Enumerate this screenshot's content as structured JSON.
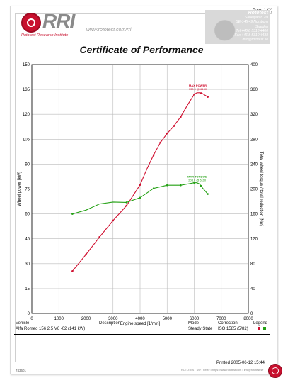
{
  "header": {
    "page_number": "Page 1 (2)",
    "brand": "RRI",
    "brand_subtitle": "Rototest Research Institute",
    "url": "www.rototest.com/rri",
    "company_name": "Rototest",
    "company_lines": [
      "Sabelgatan 2D",
      "SE-145 49 Norsborg",
      "Sweden",
      "Tel +46 8 5310 4400",
      "Fax +46 8 5310 4488",
      "info@rototest.se"
    ]
  },
  "title": "Certificate of Performance",
  "chart_data": {
    "type": "line",
    "title": "Certificate of Performance",
    "xlabel": "Engine speed [1/min]",
    "ylabel": "Wheel power [kW]",
    "y2label": "Total wheel torque / total reduction [Nm]",
    "xlim": [
      0,
      8000
    ],
    "ylim": [
      0,
      150
    ],
    "y2lim": [
      0,
      400
    ],
    "x_ticks": [
      0,
      1000,
      2000,
      3000,
      4000,
      5000,
      6000,
      7000,
      8000
    ],
    "y_ticks": [
      0,
      15,
      30,
      45,
      60,
      75,
      90,
      105,
      120,
      135,
      150
    ],
    "y2_ticks": [
      0,
      40,
      80,
      120,
      160,
      200,
      240,
      280,
      320,
      360,
      400
    ],
    "grid": true,
    "series": [
      {
        "name": "Power",
        "color": "#d01030",
        "axis": "left",
        "x": [
          1500,
          2000,
          2500,
          3000,
          3500,
          4000,
          4250,
          4500,
          4750,
          5000,
          5250,
          5500,
          5750,
          6000,
          6100,
          6200,
          6300,
          6500
        ],
        "y": [
          25.5,
          35.5,
          46,
          56,
          65,
          77.5,
          87,
          95.5,
          103,
          108.5,
          113,
          118.5,
          125.5,
          132,
          133,
          133,
          132.5,
          130.5
        ],
        "marker_x": [
          1500,
          2000,
          2500,
          3000,
          3500,
          4000,
          4500,
          4750,
          5000,
          5250,
          5500,
          6000,
          6250,
          6500
        ]
      },
      {
        "name": "Torque",
        "color": "#22a012",
        "axis": "right",
        "x": [
          1500,
          2000,
          2500,
          3000,
          3500,
          4000,
          4500,
          5000,
          5500,
          5750,
          6000,
          6100,
          6200,
          6300,
          6500
        ],
        "y": [
          160,
          166,
          176,
          179,
          178.5,
          186,
          201,
          206,
          206,
          208,
          210,
          210,
          208,
          202,
          192
        ],
        "marker_x": [
          1500,
          3500,
          4000,
          4500,
          5000,
          5500,
          6000,
          6250,
          6500
        ]
      }
    ],
    "annotations": [
      {
        "series": "Power",
        "label": "MAX POWER",
        "value": "133.0 @ 6130",
        "x": 6130,
        "y": 133
      },
      {
        "series": "Torque",
        "label": "MAX TORQUE",
        "value": "208.0 @ 6110",
        "x": 6110,
        "y": 208
      }
    ]
  },
  "table": {
    "headers": {
      "vehicle": "Vehicle",
      "description": "Description",
      "mode": "Mode",
      "correction": "Correction",
      "legend": "Legend"
    },
    "row": {
      "vehicle": "Alfa Romeo 156 2.5 V6 -02 (141 kW)",
      "description": "",
      "mode": "Steady State",
      "correction": "ISO 1585 (5/82)"
    },
    "legend_colors": [
      "#d01030",
      "#22a012"
    ]
  },
  "printed": "Printed 2005-06-12 15:44",
  "serial": "743601",
  "bottom_note": "ROTOTEST SW • RRI© • https://www.rototest.com • info@rototest.se"
}
